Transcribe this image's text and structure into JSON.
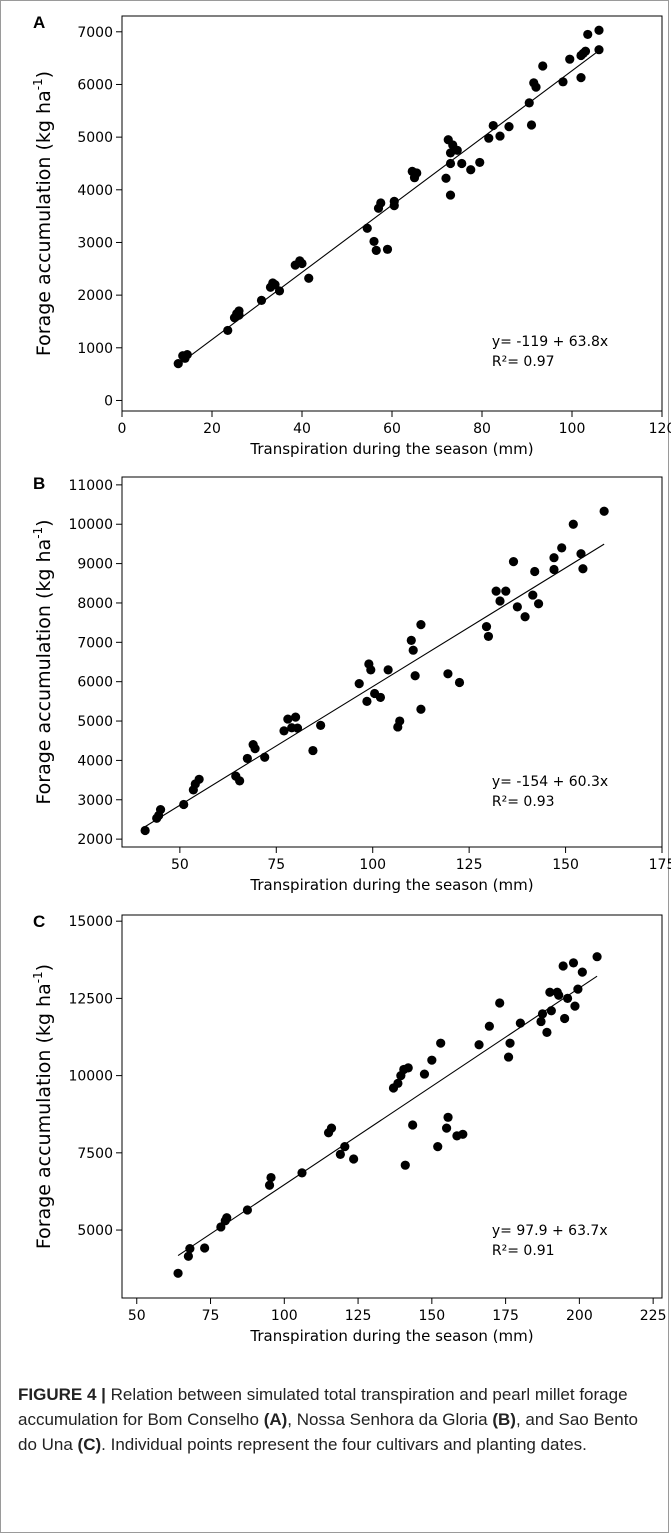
{
  "figure": {
    "caption_label": "FIGURE 4 |",
    "caption_parts": [
      {
        "text": " Relation between simulated total transpiration and pearl millet forage accumulation for Bom Conselho ",
        "bold": false
      },
      {
        "text": "(A)",
        "bold": true
      },
      {
        "text": ", Nossa Senhora da Gloria ",
        "bold": false
      },
      {
        "text": "(B)",
        "bold": true
      },
      {
        "text": ", and Sao Bento do Una ",
        "bold": false
      },
      {
        "text": "(C)",
        "bold": true
      },
      {
        "text": ". Individual points represent the four cultivars and planting dates.",
        "bold": false
      }
    ]
  },
  "chart_data": [
    {
      "type": "scatter",
      "panel_label": "A",
      "title": "",
      "xlabel": "Transpiration during the season (mm)",
      "ylabel": "Forage accumulation (kg ha",
      "ylabel_sup": "-1",
      "ylabel_close": ")",
      "xlim": [
        0,
        120
      ],
      "ylim": [
        -200,
        7300
      ],
      "xticks": [
        0,
        20,
        40,
        60,
        80,
        100,
        120
      ],
      "yticks": [
        0,
        1000,
        2000,
        3000,
        4000,
        5000,
        6000,
        7000
      ],
      "grid": false,
      "equation": "y= -119 + 63.8x",
      "r2": "R²= 0.97",
      "fit": {
        "intercept": -119,
        "slope": 63.8,
        "x_range": [
          12,
          106
        ]
      },
      "points": [
        [
          12.5,
          700
        ],
        [
          13.5,
          850
        ],
        [
          14,
          800
        ],
        [
          14.5,
          870
        ],
        [
          23.5,
          1330
        ],
        [
          25,
          1570
        ],
        [
          25.5,
          1650
        ],
        [
          26,
          1620
        ],
        [
          26,
          1700
        ],
        [
          31,
          1900
        ],
        [
          33,
          2150
        ],
        [
          33.5,
          2230
        ],
        [
          34,
          2200
        ],
        [
          35,
          2080
        ],
        [
          38.5,
          2570
        ],
        [
          39.5,
          2650
        ],
        [
          40,
          2600
        ],
        [
          41.5,
          2320
        ],
        [
          54.5,
          3270
        ],
        [
          56,
          3020
        ],
        [
          56.5,
          2850
        ],
        [
          57,
          3650
        ],
        [
          57.5,
          3750
        ],
        [
          59,
          2870
        ],
        [
          60.5,
          3700
        ],
        [
          60.5,
          3780
        ],
        [
          64.5,
          4350
        ],
        [
          65,
          4230
        ],
        [
          65.5,
          4320
        ],
        [
          72,
          4220
        ],
        [
          72.5,
          4950
        ],
        [
          73,
          4700
        ],
        [
          73,
          3900
        ],
        [
          73,
          4500
        ],
        [
          73.5,
          4850
        ],
        [
          74.5,
          4750
        ],
        [
          75.5,
          4500
        ],
        [
          77.5,
          4380
        ],
        [
          79.5,
          4520
        ],
        [
          81.5,
          4980
        ],
        [
          82.5,
          5220
        ],
        [
          84,
          5020
        ],
        [
          86,
          5200
        ],
        [
          90.5,
          5650
        ],
        [
          91,
          5230
        ],
        [
          91.5,
          6030
        ],
        [
          92,
          5950
        ],
        [
          93.5,
          6350
        ],
        [
          98,
          6050
        ],
        [
          99.5,
          6480
        ],
        [
          102,
          6130
        ],
        [
          102,
          6550
        ],
        [
          102.5,
          6590
        ],
        [
          103,
          6630
        ],
        [
          103.5,
          6950
        ],
        [
          106,
          7030
        ],
        [
          106,
          6660
        ]
      ]
    },
    {
      "type": "scatter",
      "panel_label": "B",
      "title": "",
      "xlabel": "Transpiration during the season (mm)",
      "ylabel": "Forage accumulation (kg ha",
      "ylabel_sup": "-1",
      "ylabel_close": ")",
      "xlim": [
        35,
        175
      ],
      "ylim": [
        1800,
        11200
      ],
      "xticks": [
        50,
        75,
        100,
        125,
        150,
        175
      ],
      "yticks": [
        2000,
        3000,
        4000,
        5000,
        6000,
        7000,
        8000,
        9000,
        10000,
        11000
      ],
      "grid": false,
      "equation": "y= -154 + 60.3x",
      "r2": "R²= 0.93",
      "fit": {
        "intercept": -154,
        "slope": 60.3,
        "x_range": [
          41,
          160
        ]
      },
      "points": [
        [
          41,
          2220
        ],
        [
          44,
          2530
        ],
        [
          44.5,
          2600
        ],
        [
          45,
          2750
        ],
        [
          51,
          2880
        ],
        [
          53.5,
          3250
        ],
        [
          54,
          3400
        ],
        [
          55,
          3520
        ],
        [
          64.5,
          3600
        ],
        [
          65.5,
          3480
        ],
        [
          67.5,
          4050
        ],
        [
          69,
          4400
        ],
        [
          69.5,
          4300
        ],
        [
          72,
          4080
        ],
        [
          77,
          4750
        ],
        [
          78,
          5050
        ],
        [
          79,
          4830
        ],
        [
          80,
          5100
        ],
        [
          80.5,
          4820
        ],
        [
          84.5,
          4250
        ],
        [
          86.5,
          4890
        ],
        [
          96.5,
          5950
        ],
        [
          98.5,
          5500
        ],
        [
          99,
          6450
        ],
        [
          99.5,
          6300
        ],
        [
          100.5,
          5700
        ],
        [
          102,
          5600
        ],
        [
          104,
          6300
        ],
        [
          106.5,
          4850
        ],
        [
          107,
          5000
        ],
        [
          110,
          7050
        ],
        [
          110.5,
          6800
        ],
        [
          111,
          6150
        ],
        [
          112.5,
          7450
        ],
        [
          112.5,
          5300
        ],
        [
          119.5,
          6200
        ],
        [
          122.5,
          5980
        ],
        [
          129.5,
          7400
        ],
        [
          130,
          7150
        ],
        [
          132,
          8300
        ],
        [
          133,
          8050
        ],
        [
          134.5,
          8300
        ],
        [
          136.5,
          9050
        ],
        [
          137.5,
          7900
        ],
        [
          139.5,
          7650
        ],
        [
          141.5,
          8200
        ],
        [
          142,
          8800
        ],
        [
          143,
          7980
        ],
        [
          147,
          8850
        ],
        [
          147,
          9150
        ],
        [
          149,
          9400
        ],
        [
          152,
          10000
        ],
        [
          154,
          9250
        ],
        [
          154.5,
          8870
        ],
        [
          160,
          10330
        ]
      ]
    },
    {
      "type": "scatter",
      "panel_label": "C",
      "title": "",
      "xlabel": "Transpiration during the season (mm)",
      "ylabel": "Forage accumulation (kg ha",
      "ylabel_sup": "-1",
      "ylabel_close": ")",
      "xlim": [
        45,
        228
      ],
      "ylim": [
        2800,
        15200
      ],
      "xticks": [
        50,
        75,
        100,
        125,
        150,
        175,
        200,
        225
      ],
      "yticks": [
        5000,
        7500,
        10000,
        12500,
        15000
      ],
      "grid": false,
      "equation": "y= 97.9 + 63.7x",
      "r2": "R²= 0.91",
      "fit": {
        "intercept": 97.9,
        "slope": 63.7,
        "x_range": [
          64,
          206
        ]
      },
      "points": [
        [
          64,
          3600
        ],
        [
          67.5,
          4150
        ],
        [
          68,
          4400
        ],
        [
          73,
          4420
        ],
        [
          78.5,
          5100
        ],
        [
          80,
          5300
        ],
        [
          80.5,
          5400
        ],
        [
          87.5,
          5650
        ],
        [
          95,
          6450
        ],
        [
          95.5,
          6700
        ],
        [
          106,
          6850
        ],
        [
          115,
          8150
        ],
        [
          116,
          8300
        ],
        [
          119,
          7450
        ],
        [
          120.5,
          7700
        ],
        [
          123.5,
          7300
        ],
        [
          137,
          9600
        ],
        [
          138.5,
          9750
        ],
        [
          139.5,
          10000
        ],
        [
          140.5,
          10200
        ],
        [
          141,
          7100
        ],
        [
          142,
          10250
        ],
        [
          143.5,
          8400
        ],
        [
          147.5,
          10050
        ],
        [
          150,
          10500
        ],
        [
          152,
          7700
        ],
        [
          153,
          11050
        ],
        [
          155,
          8300
        ],
        [
          155.5,
          8650
        ],
        [
          158.5,
          8050
        ],
        [
          160.5,
          8100
        ],
        [
          166,
          11000
        ],
        [
          169.5,
          11600
        ],
        [
          173,
          12350
        ],
        [
          176,
          10600
        ],
        [
          176.5,
          11050
        ],
        [
          180,
          11700
        ],
        [
          187,
          11750
        ],
        [
          187.5,
          12000
        ],
        [
          189,
          11400
        ],
        [
          190,
          12700
        ],
        [
          190.5,
          12100
        ],
        [
          192.5,
          12700
        ],
        [
          193,
          12600
        ],
        [
          194.5,
          13550
        ],
        [
          195,
          11850
        ],
        [
          196,
          12500
        ],
        [
          198,
          13650
        ],
        [
          198.5,
          12250
        ],
        [
          199.5,
          12800
        ],
        [
          201,
          13350
        ],
        [
          206,
          13850
        ]
      ]
    }
  ]
}
